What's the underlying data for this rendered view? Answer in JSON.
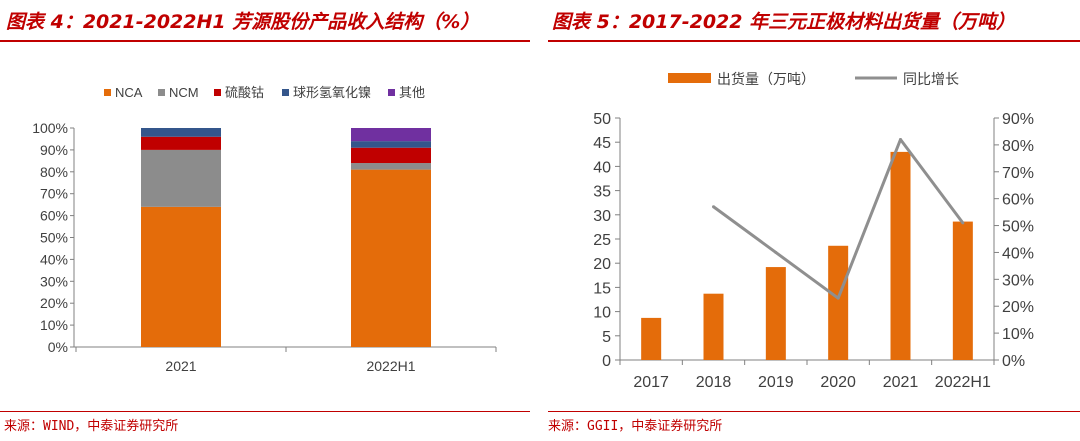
{
  "chart_data": [
    {
      "type": "bar",
      "stacked": true,
      "title": "图表 4：2021-2022H1 芳源股份产品收入结构（%）",
      "source": "来源：WIND，中泰证券研究所",
      "categories": [
        "2021",
        "2022H1"
      ],
      "series": [
        {
          "name": "NCA",
          "values": [
            64,
            81
          ],
          "color": "#e46c0a"
        },
        {
          "name": "NCM",
          "values": [
            26,
            3
          ],
          "color": "#8c8c8c"
        },
        {
          "name": "硫酸钴",
          "values": [
            6,
            7
          ],
          "color": "#c00000"
        },
        {
          "name": "球形氢氧化镍",
          "values": [
            4,
            3
          ],
          "color": "#34568b"
        },
        {
          "name": "其他",
          "values": [
            0,
            6
          ],
          "color": "#7030a0"
        }
      ],
      "ylim": [
        0,
        100
      ],
      "yticks": [
        "0%",
        "10%",
        "20%",
        "30%",
        "40%",
        "50%",
        "60%",
        "70%",
        "80%",
        "90%",
        "100%"
      ],
      "legend": "top",
      "grid": false
    },
    {
      "type": "bar",
      "title": "图表 5：2017-2022 年三元正极材料出货量（万吨）",
      "source": "来源：GGII，中泰证券研究所",
      "categories": [
        "2017",
        "2018",
        "2019",
        "2020",
        "2021",
        "2022H1"
      ],
      "series": [
        {
          "name": "出货量（万吨）",
          "type": "bar",
          "axis": "left",
          "values": [
            8.7,
            13.7,
            19.2,
            23.6,
            43.0,
            28.6
          ],
          "color": "#e46c0a"
        },
        {
          "name": "同比增长",
          "type": "line",
          "axis": "right",
          "values": [
            null,
            57,
            40,
            23,
            82,
            51
          ],
          "color": "#8f8f8f"
        }
      ],
      "ylim_left": [
        0,
        50
      ],
      "ylim_right": [
        0,
        90
      ],
      "yticks_left": [
        "0",
        "5",
        "10",
        "15",
        "20",
        "25",
        "30",
        "35",
        "40",
        "45",
        "50"
      ],
      "yticks_right": [
        "0%",
        "10%",
        "20%",
        "30%",
        "40%",
        "50%",
        "60%",
        "70%",
        "80%",
        "90%"
      ],
      "legend": "top",
      "grid": false
    }
  ]
}
